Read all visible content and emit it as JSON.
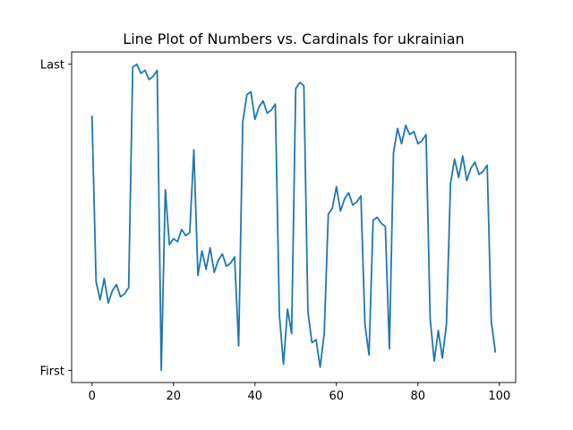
{
  "chart_data": {
    "type": "line",
    "title": "Line Plot of Numbers vs. Cardinals for ukrainian",
    "xlabel": "",
    "ylabel": "",
    "xlim": [
      -5,
      104
    ],
    "ylim": [
      -0.04,
      1.04
    ],
    "x_ticks": [
      0,
      20,
      40,
      60,
      80,
      100
    ],
    "y_ticks": [
      {
        "value": 0,
        "label": "First"
      },
      {
        "value": 1,
        "label": "Last"
      }
    ],
    "grid": false,
    "legend": null,
    "series": [
      {
        "color": "#1f77b4",
        "x": [
          0,
          1,
          2,
          3,
          4,
          5,
          6,
          7,
          8,
          9,
          10,
          11,
          12,
          13,
          14,
          15,
          16,
          17,
          18,
          19,
          20,
          21,
          22,
          23,
          24,
          25,
          26,
          27,
          28,
          29,
          30,
          31,
          32,
          33,
          34,
          35,
          36,
          37,
          38,
          39,
          40,
          41,
          42,
          43,
          44,
          45,
          46,
          47,
          48,
          49,
          50,
          51,
          52,
          53,
          54,
          55,
          56,
          57,
          58,
          59,
          60,
          61,
          62,
          63,
          64,
          65,
          66,
          67,
          68,
          69,
          70,
          71,
          72,
          73,
          74,
          75,
          76,
          77,
          78,
          79,
          80,
          81,
          82,
          83,
          84,
          85,
          86,
          87,
          88,
          89,
          90,
          91,
          92,
          93,
          94,
          95,
          96,
          97,
          98,
          99
        ],
        "y": [
          0.83,
          0.29,
          0.23,
          0.3,
          0.22,
          0.26,
          0.28,
          0.24,
          0.25,
          0.27,
          0.99,
          1.0,
          0.97,
          0.98,
          0.95,
          0.96,
          0.98,
          0.0,
          0.59,
          0.41,
          0.43,
          0.42,
          0.46,
          0.44,
          0.45,
          0.72,
          0.31,
          0.39,
          0.33,
          0.4,
          0.32,
          0.36,
          0.38,
          0.34,
          0.35,
          0.37,
          0.08,
          0.81,
          0.9,
          0.91,
          0.82,
          0.86,
          0.88,
          0.84,
          0.85,
          0.87,
          0.18,
          0.02,
          0.2,
          0.12,
          0.92,
          0.94,
          0.93,
          0.19,
          0.09,
          0.1,
          0.01,
          0.12,
          0.51,
          0.53,
          0.6,
          0.52,
          0.56,
          0.58,
          0.54,
          0.55,
          0.57,
          0.15,
          0.05,
          0.49,
          0.5,
          0.48,
          0.47,
          0.07,
          0.71,
          0.79,
          0.74,
          0.8,
          0.77,
          0.78,
          0.74,
          0.75,
          0.77,
          0.17,
          0.03,
          0.13,
          0.04,
          0.15,
          0.61,
          0.69,
          0.63,
          0.7,
          0.62,
          0.66,
          0.68,
          0.64,
          0.65,
          0.67,
          0.16,
          0.06
        ]
      }
    ]
  }
}
